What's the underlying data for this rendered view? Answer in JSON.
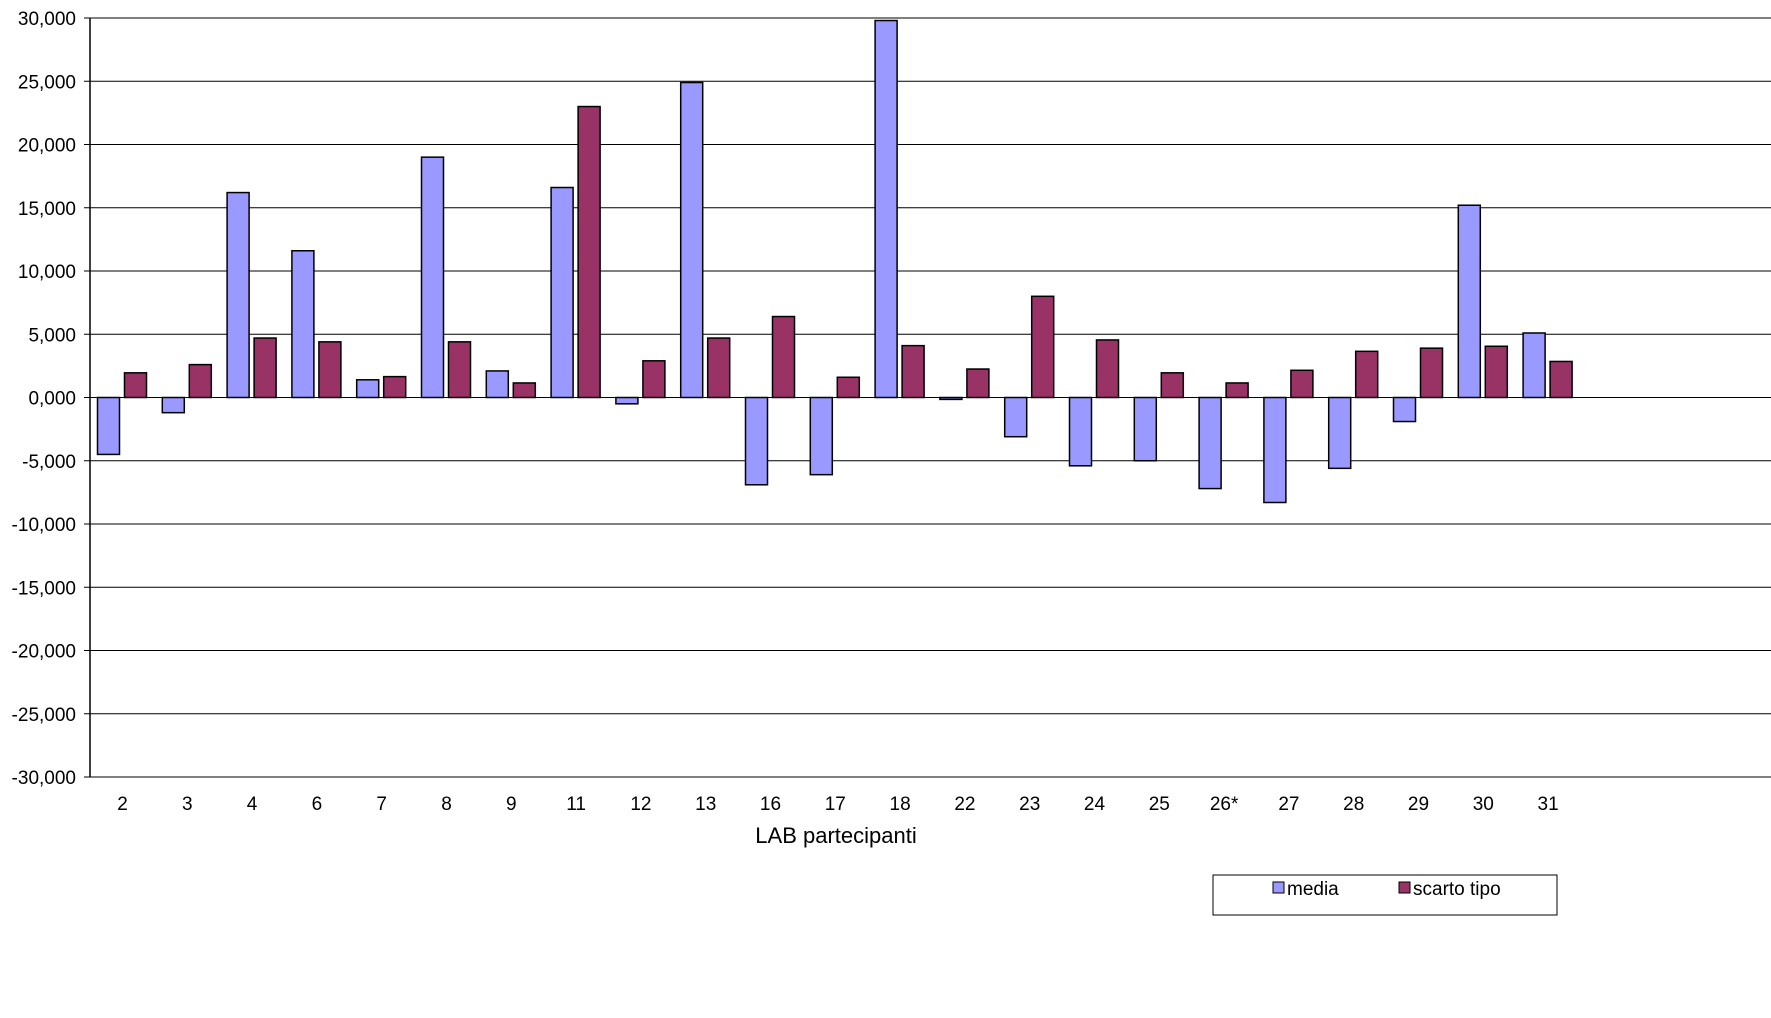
{
  "chart_data": {
    "type": "bar",
    "title": "",
    "xlabel": "LAB partecipanti",
    "ylabel": "",
    "ylim": [
      -30000,
      30000
    ],
    "y_ticks": [
      30000,
      25000,
      20000,
      15000,
      10000,
      5000,
      0,
      -5000,
      -10000,
      -15000,
      -20000,
      -25000,
      -30000
    ],
    "y_tick_labels": [
      "30,000",
      "25,000",
      "20,000",
      "15,000",
      "10,000",
      "5,000",
      "0,000",
      "-5,000",
      "-10,000",
      "-15,000",
      "-20,000",
      "-25,000",
      "-30,000"
    ],
    "grid": true,
    "legend_position": "bottom-right",
    "categories": [
      "2",
      "3",
      "4",
      "6",
      "7",
      "8",
      "9",
      "11",
      "12",
      "13",
      "16",
      "17",
      "18",
      "22",
      "23",
      "24",
      "25",
      "26*",
      "27",
      "28",
      "29",
      "30",
      "31"
    ],
    "series": [
      {
        "name": "media",
        "color": "#9999ff",
        "values": [
          -4500,
          -1200,
          16200,
          11600,
          1400,
          19000,
          2100,
          16600,
          -500,
          24900,
          -6900,
          -6100,
          29800,
          -150,
          -3100,
          -5400,
          -5000,
          -7200,
          -8300,
          -5600,
          -1900,
          15200,
          5100
        ]
      },
      {
        "name": "scarto tipo",
        "color": "#993366",
        "values": [
          1950,
          2600,
          4700,
          4400,
          1650,
          4400,
          1150,
          23000,
          2900,
          4700,
          6400,
          1600,
          4100,
          2250,
          8000,
          4550,
          1950,
          1150,
          2150,
          3650,
          3900,
          4050,
          2850
        ]
      }
    ]
  }
}
